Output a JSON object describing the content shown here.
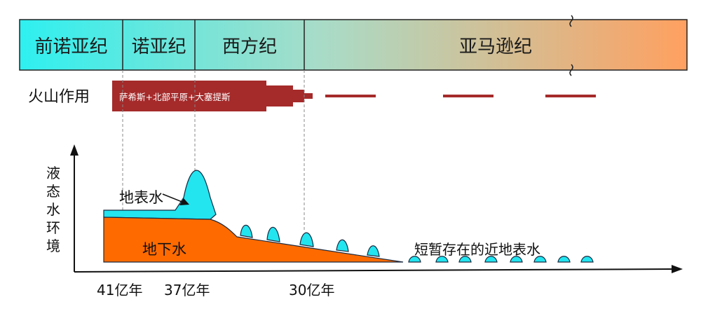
{
  "timeline": {
    "eras": [
      {
        "label": "前诺亚纪"
      },
      {
        "label": "诺亚纪"
      },
      {
        "label": "西方纪"
      },
      {
        "label": "亚马逊纪"
      }
    ]
  },
  "volcanism": {
    "label": "火山作用",
    "band_text": "萨希斯+北部平原+大塞提斯"
  },
  "chart": {
    "y_axis_label": "液态水环境",
    "surface_water_label": "地表水",
    "groundwater_label": "地下水",
    "transient_label": "短暂存在的近地表水",
    "time_ticks": [
      "41亿年",
      "37亿年",
      "30亿年"
    ]
  },
  "colors": {
    "surface_water": "#22e5f0",
    "groundwater": "#ff6a00",
    "volcanism": "#a52a2a",
    "timeline_start": "#2ef0f0",
    "timeline_end": "#ffa060"
  }
}
